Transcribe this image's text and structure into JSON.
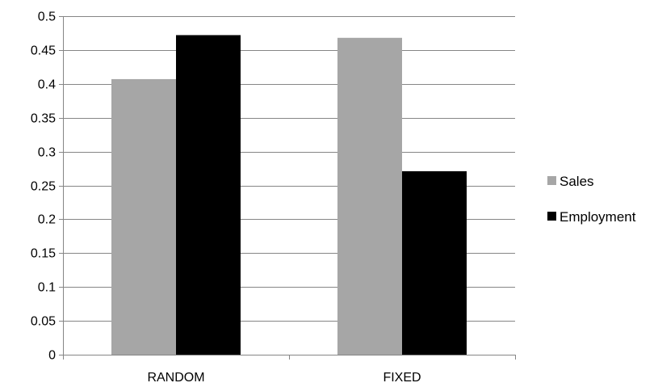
{
  "chart_data": {
    "type": "bar",
    "title": "",
    "xlabel": "",
    "ylabel": "",
    "categories": [
      "RANDOM",
      "FIXED"
    ],
    "series": [
      {
        "name": "Sales",
        "values": [
          0.407,
          0.468
        ],
        "color": "#a6a6a6"
      },
      {
        "name": "Employment",
        "values": [
          0.472,
          0.271
        ],
        "color": "#000000"
      }
    ],
    "ylim": [
      0,
      0.5
    ],
    "yticks": [
      "0",
      "0.05",
      "0.1",
      "0.15",
      "0.2",
      "0.25",
      "0.3",
      "0.35",
      "0.4",
      "0.45",
      "0.5"
    ],
    "grid": true,
    "legend_position": "right"
  }
}
